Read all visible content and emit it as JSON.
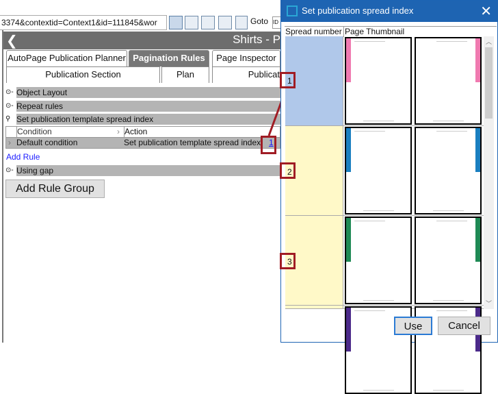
{
  "browser": {
    "url": "3374&contextid=Context1&id=111845&wor",
    "goto_label": "Goto",
    "id_box": "ID",
    "toolbar_icons": [
      "list-view-icon",
      "comment-icon",
      "monitor-icon",
      "columns-icon",
      "page-number-icon"
    ]
  },
  "header": {
    "back": "❮",
    "title": "Shirts - P"
  },
  "tabs": [
    {
      "label": "AutoPage Publication Planner"
    },
    {
      "label": "Pagination Rules",
      "active": true
    },
    {
      "label": "Page Inspector"
    }
  ],
  "subtabs": [
    {
      "label": "Publication Section"
    },
    {
      "label": "Plan"
    },
    {
      "label": "Publicat"
    }
  ],
  "sections": [
    {
      "label": "Object Layout",
      "icon": "key-collapsed-icon"
    },
    {
      "label": "Repeat rules",
      "icon": "key-collapsed-icon"
    },
    {
      "label": "Set publication template spread index",
      "icon": "key-expanded-icon"
    }
  ],
  "rule_table": {
    "headers": [
      "Condition",
      "Action"
    ],
    "rows": [
      {
        "condition": "Default condition",
        "action": "Set publication template spread index",
        "link": "1"
      }
    ]
  },
  "add_rule": "Add Rule",
  "using_gap": "Using gap",
  "add_rule_group": "Add Rule Group",
  "dialog": {
    "title": "Set publication spread index",
    "close": "✕",
    "columns": [
      "Spread number",
      "Page Thumbnail"
    ],
    "spreads": [
      {
        "number": "1",
        "color": "#b0c8ea",
        "strip": "#f07ab0"
      },
      {
        "number": "2",
        "color": "#fff9c8",
        "strip": "#1a7fc0"
      },
      {
        "number": "3",
        "color": "#fff9c8",
        "strip": "#1f8a55"
      },
      {
        "number": "",
        "color": "#fff9c8",
        "strip": "#4b2a8a"
      }
    ],
    "use": "Use",
    "cancel": "Cancel"
  },
  "colors": {
    "accent": "#1e64b2",
    "highlight": "#a01c24"
  }
}
